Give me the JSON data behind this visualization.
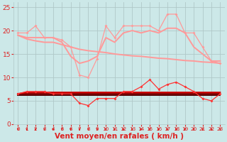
{
  "x": [
    0,
    1,
    2,
    3,
    4,
    5,
    6,
    7,
    8,
    9,
    10,
    11,
    12,
    13,
    14,
    15,
    16,
    17,
    18,
    19,
    20,
    21,
    22,
    23
  ],
  "series": [
    {
      "name": "rafales_line1",
      "values": [
        19.5,
        19.5,
        21,
        18.5,
        18.5,
        18,
        16.5,
        10.5,
        10,
        14,
        21,
        18.5,
        21,
        21,
        21,
        21,
        20,
        23.5,
        23.5,
        19.5,
        19.5,
        16.5,
        13.5,
        13
      ],
      "color": "#ff9999",
      "linewidth": 0.9,
      "marker": "D",
      "markersize": 2.0,
      "zorder": 3
    },
    {
      "name": "rafales_line2",
      "values": [
        19.0,
        18.5,
        18.5,
        18.5,
        18.5,
        17.5,
        14.5,
        13,
        13.5,
        14.5,
        18.5,
        17.5,
        19.5,
        20,
        19.5,
        20,
        19.5,
        20.5,
        20.5,
        19.5,
        16.5,
        15,
        13.5,
        13.5
      ],
      "color": "#ff9999",
      "linewidth": 1.4,
      "marker": null,
      "markersize": 0,
      "zorder": 2
    },
    {
      "name": "rafales_line3",
      "values": [
        19.0,
        18.2,
        17.8,
        17.5,
        17.5,
        17.0,
        16.5,
        16.0,
        15.7,
        15.5,
        15.3,
        15.0,
        14.8,
        14.6,
        14.5,
        14.3,
        14.1,
        14.0,
        13.8,
        13.6,
        13.5,
        13.3,
        13.2,
        13.0
      ],
      "color": "#ff9999",
      "linewidth": 1.4,
      "marker": null,
      "markersize": 0,
      "zorder": 1
    },
    {
      "name": "wind_line1",
      "values": [
        6.5,
        7,
        7,
        7,
        6.5,
        6.5,
        6.5,
        4.5,
        4,
        5.5,
        5.5,
        5.5,
        7,
        7,
        8,
        9.5,
        7.5,
        8.5,
        9,
        8,
        7,
        5.5,
        5,
        6.5
      ],
      "color": "#ff3333",
      "linewidth": 0.9,
      "marker": "D",
      "markersize": 2.0,
      "zorder": 6
    },
    {
      "name": "wind_line2",
      "values": [
        6.5,
        6.8,
        6.8,
        6.8,
        6.8,
        6.8,
        6.8,
        6.8,
        6.8,
        6.8,
        6.8,
        6.8,
        6.8,
        6.8,
        6.8,
        6.8,
        6.8,
        6.8,
        6.8,
        6.8,
        6.8,
        6.8,
        6.8,
        6.8
      ],
      "color": "#cc0000",
      "linewidth": 1.4,
      "marker": null,
      "markersize": 0,
      "zorder": 5
    },
    {
      "name": "wind_line3",
      "values": [
        6.5,
        6.5,
        6.5,
        6.5,
        6.5,
        6.5,
        6.5,
        6.5,
        6.5,
        6.5,
        6.5,
        6.5,
        6.5,
        6.5,
        6.5,
        6.5,
        6.5,
        6.5,
        6.5,
        6.5,
        6.5,
        6.5,
        6.5,
        6.5
      ],
      "color": "#880000",
      "linewidth": 1.4,
      "marker": null,
      "markersize": 0,
      "zorder": 4
    },
    {
      "name": "wind_line4",
      "values": [
        6.2,
        6.2,
        6.2,
        6.2,
        6.2,
        6.2,
        6.2,
        6.2,
        6.2,
        6.2,
        6.2,
        6.2,
        6.2,
        6.2,
        6.2,
        6.2,
        6.2,
        6.2,
        6.2,
        6.2,
        6.2,
        6.2,
        6.2,
        6.2
      ],
      "color": "#550000",
      "linewidth": 1.4,
      "marker": null,
      "markersize": 0,
      "zorder": 4
    }
  ],
  "xlabel": "Vent moyen/en rafales ( km/h )",
  "ylim": [
    0,
    26
  ],
  "xlim": [
    -0.5,
    23.5
  ],
  "yticks": [
    0,
    5,
    10,
    15,
    20,
    25
  ],
  "xticks": [
    0,
    1,
    2,
    3,
    4,
    5,
    6,
    7,
    8,
    9,
    10,
    11,
    12,
    13,
    14,
    15,
    16,
    17,
    18,
    19,
    20,
    21,
    22,
    23
  ],
  "background_color": "#cce8e8",
  "grid_color": "#b0c8c8",
  "arrow_color": "#dd2222",
  "xlabel_color": "#dd2222",
  "tick_color": "#dd2222",
  "xlabel_fontsize": 7.5,
  "ytick_fontsize": 6.5,
  "xtick_fontsize": 5.2
}
